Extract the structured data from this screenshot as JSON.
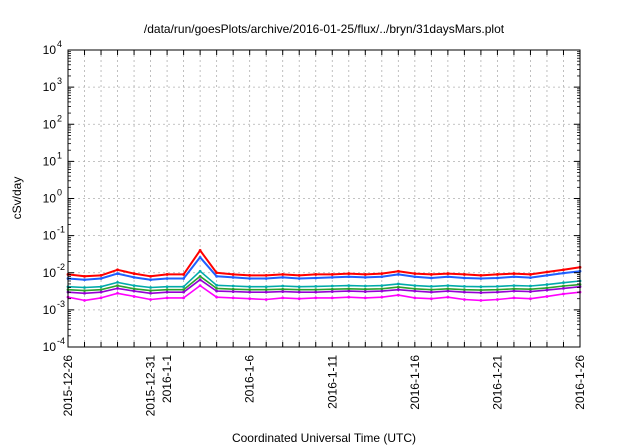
{
  "chart_data": {
    "type": "line",
    "title": "/data/run/goesPlots/archive/2016-01-25/flux/../bryn/31daysMars.plot",
    "xlabel": "Coordinated Universal Time (UTC)",
    "ylabel": "cSv/day",
    "yscale": "log",
    "ylim": [
      0.0001,
      10000
    ],
    "xlim": [
      "2015-12-26",
      "2016-01-26"
    ],
    "grid": true,
    "y_ticks": [
      {
        "base": "10",
        "exp": "-4"
      },
      {
        "base": "10",
        "exp": "-3"
      },
      {
        "base": "10",
        "exp": "-2"
      },
      {
        "base": "10",
        "exp": "-1"
      },
      {
        "base": "10",
        "exp": "0"
      },
      {
        "base": "10",
        "exp": "1"
      },
      {
        "base": "10",
        "exp": "2"
      },
      {
        "base": "10",
        "exp": "3"
      },
      {
        "base": "10",
        "exp": "4"
      }
    ],
    "x_ticks": [
      "2015-12-26",
      "2015-12-31",
      "2016-1-1",
      "2016-1-6",
      "2016-1-11",
      "2016-1-16",
      "2016-1-21",
      "2016-1-26"
    ],
    "x": [
      "2015-12-26",
      "2015-12-27",
      "2015-12-28",
      "2015-12-29",
      "2015-12-30",
      "2015-12-31",
      "2016-01-01",
      "2016-01-02",
      "2016-01-03",
      "2016-01-04",
      "2016-01-05",
      "2016-01-06",
      "2016-01-07",
      "2016-01-08",
      "2016-01-09",
      "2016-01-10",
      "2016-01-11",
      "2016-01-12",
      "2016-01-13",
      "2016-01-14",
      "2016-01-15",
      "2016-01-16",
      "2016-01-17",
      "2016-01-18",
      "2016-01-19",
      "2016-01-20",
      "2016-01-21",
      "2016-01-22",
      "2016-01-23",
      "2016-01-24",
      "2016-01-25",
      "2016-01-26"
    ],
    "series": [
      {
        "color": "#ff0000",
        "values": [
          0.009,
          0.008,
          0.0085,
          0.012,
          0.0095,
          0.008,
          0.009,
          0.009,
          0.04,
          0.01,
          0.009,
          0.0085,
          0.0085,
          0.009,
          0.0085,
          0.009,
          0.009,
          0.0095,
          0.009,
          0.0095,
          0.011,
          0.0095,
          0.009,
          0.0095,
          0.009,
          0.0085,
          0.009,
          0.0095,
          0.009,
          0.0105,
          0.012,
          0.014
        ]
      },
      {
        "color": "#1f5fff",
        "values": [
          0.007,
          0.0065,
          0.007,
          0.0095,
          0.0075,
          0.0065,
          0.007,
          0.007,
          0.026,
          0.008,
          0.0075,
          0.007,
          0.007,
          0.0075,
          0.007,
          0.0072,
          0.0075,
          0.0078,
          0.0075,
          0.0078,
          0.009,
          0.0078,
          0.0072,
          0.0078,
          0.0072,
          0.007,
          0.0072,
          0.0078,
          0.0074,
          0.0085,
          0.0098,
          0.011
        ]
      },
      {
        "color": "#00aaaa",
        "values": [
          0.0042,
          0.004,
          0.0042,
          0.0055,
          0.0045,
          0.004,
          0.0042,
          0.0042,
          0.011,
          0.0046,
          0.0044,
          0.0042,
          0.0042,
          0.0044,
          0.0042,
          0.0043,
          0.0044,
          0.0045,
          0.0044,
          0.0045,
          0.005,
          0.0045,
          0.0043,
          0.0045,
          0.0043,
          0.0042,
          0.0043,
          0.0045,
          0.0044,
          0.0048,
          0.0054,
          0.006
        ]
      },
      {
        "color": "#2ca02c",
        "values": [
          0.0035,
          0.0033,
          0.0035,
          0.0045,
          0.0037,
          0.0033,
          0.0035,
          0.0035,
          0.008,
          0.0038,
          0.0036,
          0.0035,
          0.0035,
          0.0036,
          0.0035,
          0.0035,
          0.0036,
          0.0037,
          0.0036,
          0.0037,
          0.0041,
          0.0037,
          0.0035,
          0.0037,
          0.0035,
          0.0034,
          0.0035,
          0.0037,
          0.0036,
          0.0039,
          0.0044,
          0.0048
        ]
      },
      {
        "color": "#9400d3",
        "values": [
          0.003,
          0.0028,
          0.003,
          0.0038,
          0.0032,
          0.0028,
          0.003,
          0.003,
          0.0065,
          0.0032,
          0.0031,
          0.003,
          0.003,
          0.0031,
          0.003,
          0.003,
          0.0031,
          0.0032,
          0.0031,
          0.0032,
          0.0035,
          0.0032,
          0.003,
          0.0032,
          0.003,
          0.0029,
          0.003,
          0.0032,
          0.0031,
          0.0034,
          0.0038,
          0.0042
        ]
      },
      {
        "color": "#ff00ff",
        "values": [
          0.0022,
          0.0018,
          0.0021,
          0.0028,
          0.0023,
          0.0019,
          0.0021,
          0.0021,
          0.0045,
          0.0022,
          0.0021,
          0.002,
          0.0019,
          0.0021,
          0.002,
          0.0021,
          0.0021,
          0.0022,
          0.0021,
          0.0022,
          0.0025,
          0.0021,
          0.002,
          0.0022,
          0.0019,
          0.0018,
          0.0019,
          0.0021,
          0.002,
          0.0023,
          0.0027,
          0.003
        ]
      }
    ]
  }
}
